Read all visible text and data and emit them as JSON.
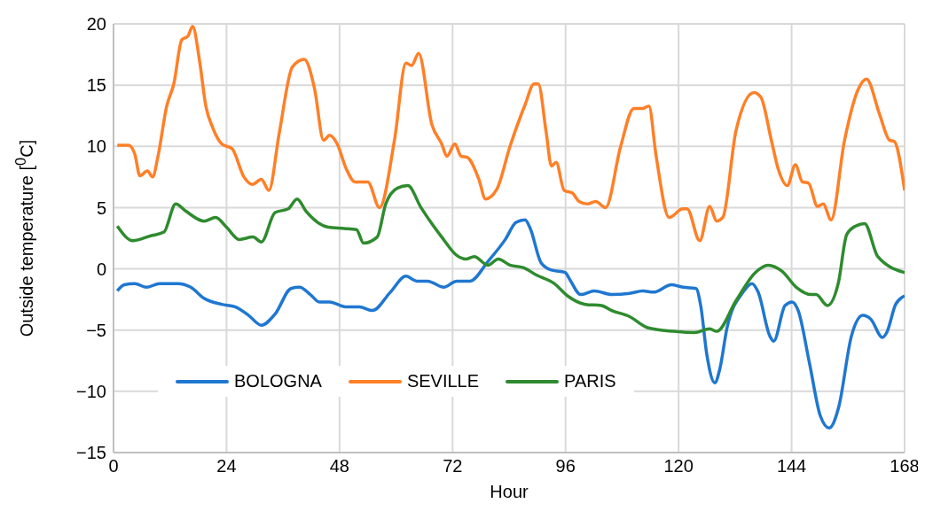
{
  "chart_data": {
    "type": "line",
    "xlabel": "Hour",
    "ylabel": "Outside  temperature [$^{0}$C]",
    "xlim": [
      0,
      168
    ],
    "xticks": [
      0,
      24,
      48,
      72,
      96,
      120,
      144,
      168
    ],
    "ylim": [
      -15,
      20
    ],
    "yticks": [
      {
        "value": -15,
        "label": "−15"
      },
      {
        "value": -10,
        "label": "−10"
      },
      {
        "value": -5,
        "label": "−5"
      },
      0,
      5,
      10,
      15,
      20
    ],
    "grid": true,
    "legend": "bottom left",
    "line_style": "solid",
    "marker": "none",
    "series": [
      {
        "name": "BOLOGNA",
        "color": "#1f77d0",
        "x": [
          0.8,
          2.3,
          4.5,
          7,
          9.8,
          13.6,
          16.4,
          19.2,
          23,
          25.8,
          28.7,
          31.4,
          34.3,
          37.7,
          39.5,
          41.8,
          43.7,
          45.9,
          49.3,
          52.2,
          55,
          58.8,
          62.1,
          64.4,
          66.7,
          70.1,
          72.9,
          75.7,
          79.5,
          83.2,
          85.5,
          87.4,
          88.5,
          90.8,
          93,
          95.9,
          96.8,
          99.2,
          102.1,
          105.8,
          109.6,
          112.4,
          114.7,
          118.5,
          120.9,
          123.7,
          124.7,
          126,
          127.7,
          128.8,
          130.3,
          133.7,
          135.6,
          136.9,
          139.4,
          140.2,
          142.6,
          144.1,
          145.4,
          147.8,
          150.1,
          152,
          154,
          156.7,
          159.1,
          160.8,
          163.3,
          164.2,
          166.1,
          168
        ],
        "values": [
          -1.8,
          -1.3,
          -1.2,
          -1.5,
          -1.2,
          -1.2,
          -1.5,
          -2.4,
          -2.9,
          -3.1,
          -3.8,
          -4.6,
          -3.7,
          -1.6,
          -1.5,
          -2.1,
          -2.7,
          -2.7,
          -3.1,
          -3.1,
          -3.4,
          -1.9,
          -0.6,
          -1,
          -1,
          -1.5,
          -1,
          -1,
          0.6,
          2.4,
          3.8,
          4,
          3.3,
          0.5,
          -0.1,
          -0.3,
          -0.8,
          -2.1,
          -1.8,
          -2.1,
          -2,
          -1.8,
          -1.9,
          -1.3,
          -1.5,
          -1.6,
          -3,
          -7,
          -9.3,
          -8.1,
          -4.8,
          -1.9,
          -1.2,
          -1.9,
          -5.5,
          -5.9,
          -3,
          -2.7,
          -3.4,
          -7.7,
          -12,
          -13,
          -11.3,
          -5.5,
          -3.8,
          -4.1,
          -5.6,
          -5.2,
          -2.9,
          -2.2
        ]
      },
      {
        "name": "SEVILLE",
        "color": "#ff7f27",
        "x": [
          0.8,
          3.2,
          4.5,
          5.6,
          7.2,
          8.3,
          9.4,
          11.3,
          12.8,
          14.5,
          15.8,
          16.8,
          18.3,
          19.6,
          21.1,
          23,
          25.2,
          27.7,
          29.5,
          31.4,
          33,
          35.2,
          38,
          40.5,
          42.7,
          44.6,
          45.9,
          47.5,
          49.4,
          51.3,
          54,
          56.5,
          59.7,
          62.1,
          63.3,
          64.8,
          67.6,
          69.7,
          70.8,
          72.5,
          73.8,
          75.1,
          77.6,
          79,
          81.4,
          84.2,
          87.4,
          89.3,
          90.2,
          91.9,
          93,
          94,
          95.7,
          97.4,
          98.9,
          100.6,
          102.4,
          104.5,
          107.7,
          110.5,
          112.4,
          113.7,
          115.2,
          118,
          120.9,
          121.8,
          124.5,
          126.6,
          128.1,
          129.4,
          132.2,
          136,
          137.5,
          139.7,
          141.2,
          143.1,
          144.8,
          146.3,
          147.6,
          149.5,
          150.7,
          152.4,
          155.2,
          158.2,
          159.9,
          162.7,
          164.8,
          165.8,
          168
        ],
        "values": [
          10.1,
          10.1,
          9.4,
          7.6,
          8,
          7.5,
          9.1,
          13.3,
          15.1,
          18.7,
          19,
          19.8,
          16.9,
          13.3,
          11.5,
          10.2,
          9.8,
          7.5,
          6.9,
          7.3,
          6.4,
          11.1,
          16.5,
          17.1,
          14.7,
          10.5,
          10.9,
          10.2,
          8.2,
          7.1,
          7.1,
          5,
          10.6,
          16.8,
          16.6,
          17.6,
          11.8,
          10.2,
          9.2,
          10.2,
          9.2,
          9.1,
          7.3,
          5.7,
          6.5,
          10,
          13.4,
          15.1,
          15.1,
          11.1,
          8.4,
          8.7,
          6.4,
          6.2,
          5.5,
          5.3,
          5.5,
          5,
          10,
          13.1,
          13.1,
          13.3,
          9.3,
          4.2,
          4.9,
          4.9,
          2.3,
          5.1,
          3.9,
          4.2,
          11.3,
          14.4,
          14,
          10.5,
          8.1,
          6.8,
          8.5,
          7.1,
          7,
          5.1,
          5.3,
          4,
          10.4,
          14.7,
          15.5,
          12.6,
          10.5,
          10.4,
          6.4
        ]
      },
      {
        "name": "PARIS",
        "color": "#2e8b2e",
        "x": [
          0.8,
          4.1,
          7.9,
          10.7,
          13.2,
          15.4,
          19.2,
          21.7,
          24,
          26.7,
          29.6,
          31.4,
          34.3,
          37.1,
          39,
          40.9,
          45.6,
          49,
          51.6,
          53.1,
          56,
          57.8,
          60.3,
          62.5,
          65.3,
          69.7,
          72.9,
          74.8,
          76.6,
          79.5,
          81.7,
          84.2,
          87,
          89.8,
          93.6,
          96.4,
          100.2,
          103.6,
          105.8,
          109.6,
          113.4,
          119,
          123.4,
          126.6,
          128.1,
          132.2,
          136.3,
          139,
          142,
          145,
          148.2,
          149.2,
          151.6,
          153.9,
          155.7,
          157.6,
          159.5,
          162.3,
          168
        ],
        "values": [
          3.5,
          2.3,
          2.7,
          3,
          5.3,
          4.7,
          3.9,
          4.2,
          3.4,
          2.4,
          2.6,
          2.2,
          4.6,
          4.9,
          5.7,
          4.7,
          3.4,
          3.3,
          3.2,
          2.1,
          2.6,
          5.3,
          6.6,
          6.8,
          5,
          2.6,
          1.1,
          0.8,
          1,
          0.3,
          0.8,
          0.3,
          0.1,
          -0.5,
          -1.2,
          -2.2,
          -2.9,
          -3,
          -3.4,
          -3.9,
          -4.8,
          -5.1,
          -5.2,
          -4.9,
          -5.1,
          -2.6,
          -0.3,
          0.3,
          -0.2,
          -1.5,
          -2.1,
          -2.1,
          -3,
          -1.2,
          2.8,
          3.5,
          3.7,
          1,
          -0.3
        ]
      }
    ]
  }
}
